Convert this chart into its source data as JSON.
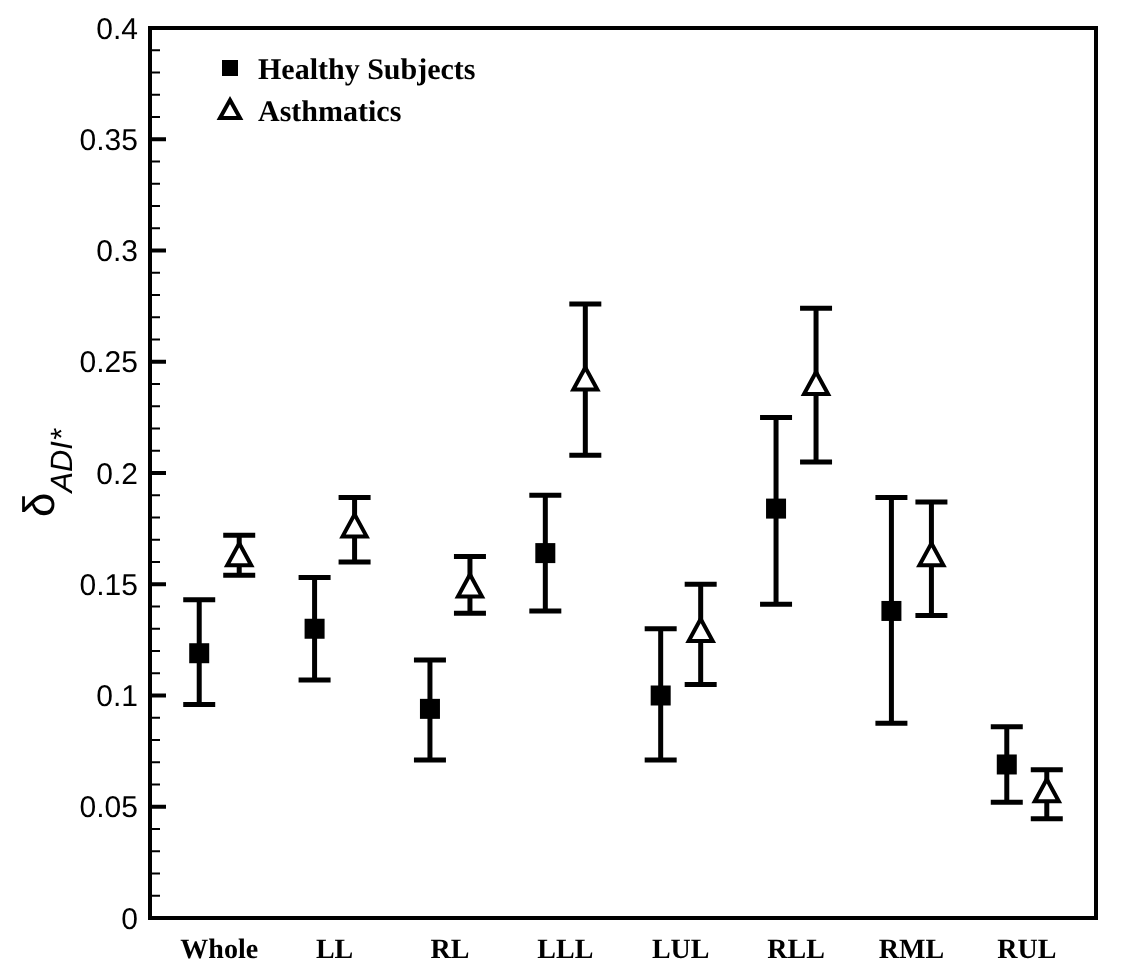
{
  "chart_data": {
    "type": "scatter",
    "ylabel": "δ$_{ADI*}$",
    "categories": [
      "Whole",
      "LL",
      "RL",
      "LLL",
      "LUL",
      "RLL",
      "RML",
      "RUL"
    ],
    "ylim": [
      0,
      0.4
    ],
    "yticks": [
      0,
      {
        "value": 0.01,
        "label": null
      },
      {
        "value": 0.02,
        "label": null
      },
      {
        "value": 0.03,
        "label": null
      },
      {
        "value": 0.04,
        "label": null
      },
      0.05,
      {
        "value": 0.06,
        "label": null
      },
      {
        "value": 0.07,
        "label": null
      },
      {
        "value": 0.08,
        "label": null
      },
      {
        "value": 0.09,
        "label": null
      },
      0.1,
      {
        "value": 0.11,
        "label": null
      },
      {
        "value": 0.12,
        "label": null
      },
      {
        "value": 0.13,
        "label": null
      },
      {
        "value": 0.14,
        "label": null
      },
      0.15,
      {
        "value": 0.16,
        "label": null
      },
      {
        "value": 0.17,
        "label": null
      },
      {
        "value": 0.18,
        "label": null
      },
      {
        "value": 0.19,
        "label": null
      },
      0.2,
      {
        "value": 0.21,
        "label": null
      },
      {
        "value": 0.22,
        "label": null
      },
      {
        "value": 0.23,
        "label": null
      },
      {
        "value": 0.24,
        "label": null
      },
      0.25,
      {
        "value": 0.26,
        "label": null
      },
      {
        "value": 0.27,
        "label": null
      },
      {
        "value": 0.28,
        "label": null
      },
      {
        "value": 0.29,
        "label": null
      },
      0.3,
      {
        "value": 0.31,
        "label": null
      },
      {
        "value": 0.32,
        "label": null
      },
      {
        "value": 0.33,
        "label": null
      },
      {
        "value": 0.34,
        "label": null
      },
      0.35,
      {
        "value": 0.36,
        "label": null
      },
      {
        "value": 0.37,
        "label": null
      },
      {
        "value": 0.38,
        "label": null
      },
      {
        "value": 0.39,
        "label": null
      },
      0.4
    ],
    "grid": false,
    "legend": "top left",
    "series": [
      {
        "name": "Healthy Subjects",
        "color": "#000000",
        "marker": "square",
        "values": [
          0.119,
          0.13,
          0.094,
          0.164,
          0.1,
          0.184,
          0.138,
          0.069
        ],
        "errors": [
          [
            0.096,
            0.143
          ],
          [
            0.107,
            0.153
          ],
          [
            0.071,
            0.116
          ],
          [
            0.138,
            0.19
          ],
          [
            0.071,
            0.13
          ],
          [
            0.141,
            0.225
          ],
          [
            0.0875,
            0.189
          ],
          [
            0.052,
            0.086
          ]
        ]
      },
      {
        "name": "Asthmatics",
        "color": "#000000",
        "marker": "triangle",
        "values": [
          0.163,
          0.176,
          0.149,
          0.242,
          0.129,
          0.24,
          0.163,
          0.057
        ],
        "errors": [
          [
            0.154,
            0.172
          ],
          [
            0.16,
            0.189
          ],
          [
            0.137,
            0.1625
          ],
          [
            0.208,
            0.276
          ],
          [
            0.105,
            0.15
          ],
          [
            0.205,
            0.274
          ],
          [
            0.136,
            0.187
          ],
          [
            0.0446,
            0.0666
          ]
        ]
      }
    ]
  }
}
